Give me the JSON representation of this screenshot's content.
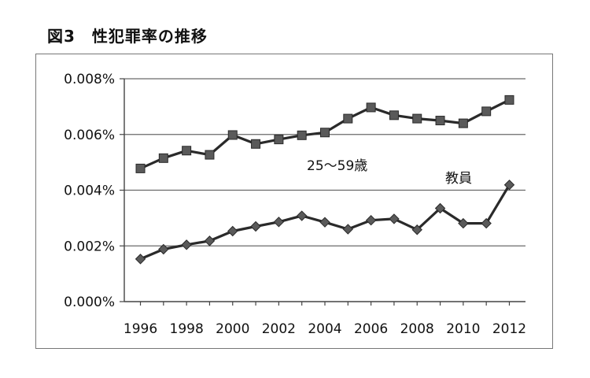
{
  "figure": {
    "title": "図3　性犯罪率の推移"
  },
  "chart_data": {
    "type": "line",
    "title": "",
    "xlabel": "",
    "ylabel": "",
    "x": [
      1996,
      1997,
      1998,
      1999,
      2000,
      2001,
      2002,
      2003,
      2004,
      2005,
      2006,
      2007,
      2008,
      2009,
      2010,
      2011,
      2012
    ],
    "x_tick_labels": [
      "1996",
      "1998",
      "2000",
      "2002",
      "2004",
      "2006",
      "2008",
      "2010",
      "2012"
    ],
    "x_tick_values": [
      1996,
      1998,
      2000,
      2002,
      2004,
      2006,
      2008,
      2010,
      2012
    ],
    "y_tick_labels": [
      "0.000%",
      "0.002%",
      "0.004%",
      "0.006%",
      "0.008%"
    ],
    "y_tick_values": [
      0,
      0.002,
      0.004,
      0.006,
      0.008
    ],
    "ylim": [
      0,
      0.008
    ],
    "xlim": [
      1995.3,
      2012.7
    ],
    "grid": "horizontal",
    "series": [
      {
        "name": "25～59歳",
        "marker": "square",
        "color": "#5a5a5a",
        "values": [
          0.00478,
          0.00515,
          0.00542,
          0.00527,
          0.00598,
          0.00566,
          0.00582,
          0.00597,
          0.00607,
          0.00657,
          0.00697,
          0.00669,
          0.00657,
          0.0065,
          0.0064,
          0.00683,
          0.00724
        ]
      },
      {
        "name": "教員",
        "marker": "diamond",
        "color": "#5a5a5a",
        "values": [
          0.00153,
          0.00188,
          0.00204,
          0.00218,
          0.00253,
          0.0027,
          0.00286,
          0.00308,
          0.00285,
          0.0026,
          0.00292,
          0.00297,
          0.00258,
          0.00335,
          0.00281,
          0.00281,
          0.00419
        ]
      }
    ]
  }
}
